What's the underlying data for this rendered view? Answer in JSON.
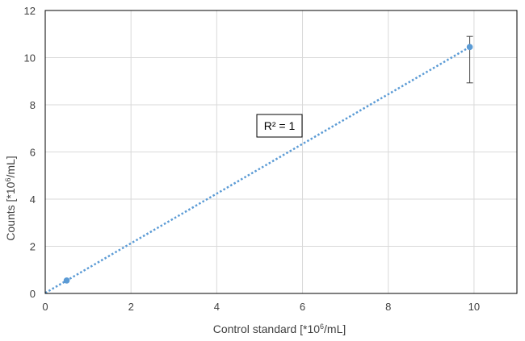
{
  "chart_data": {
    "type": "scatter",
    "title": "",
    "xlabel": "Control standard [*10",
    "xlabel_sup": "6",
    "xlabel_tail": "/mL]",
    "ylabel": "Counts [*10",
    "ylabel_sup": "6",
    "ylabel_tail": "/mL]",
    "xlim": [
      0,
      11
    ],
    "ylim": [
      0,
      12
    ],
    "xticks": [
      0,
      2,
      4,
      6,
      8,
      10
    ],
    "yticks": [
      0,
      2,
      4,
      6,
      8,
      10,
      12
    ],
    "grid": true,
    "legend": "none",
    "series": [
      {
        "points": [
          {
            "x": 0.5,
            "y": 0.55
          },
          {
            "x": 9.9,
            "y": 10.45,
            "err_low": 8.93,
            "err_high": 10.9
          }
        ],
        "color": "#5b9bd5"
      }
    ],
    "trendline": {
      "type": "linear",
      "x_range": [
        0,
        9.9
      ],
      "y_range": [
        0.02,
        10.45
      ],
      "style": "dotted",
      "color": "#5b9bd5"
    },
    "annotations": [
      {
        "text": "R² = 1",
        "x": 5.6,
        "y": 7.05
      }
    ],
    "colors": {
      "grid": "#d9d9d9",
      "axis": "#000000",
      "errorbar": "#404040"
    }
  }
}
